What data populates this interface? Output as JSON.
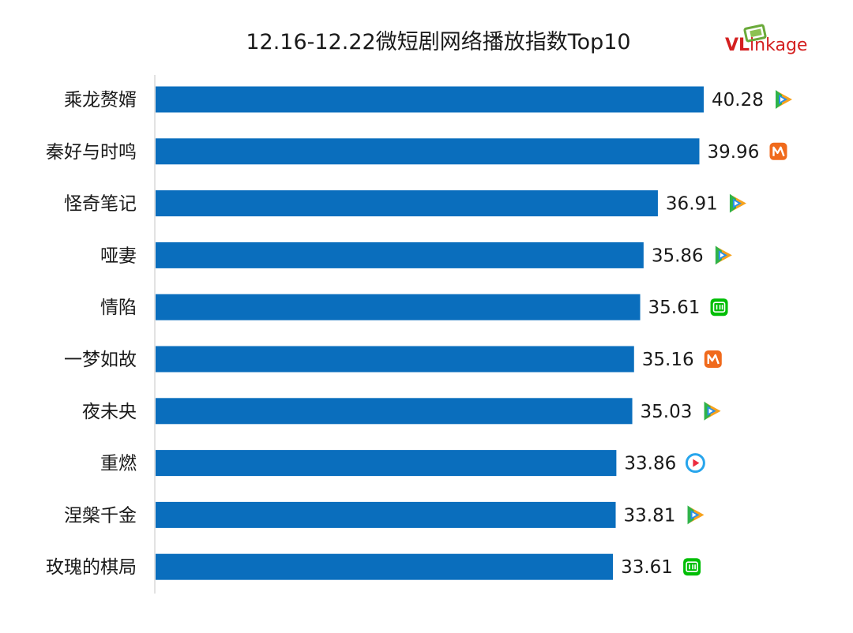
{
  "chart_data": {
    "type": "bar",
    "orientation": "horizontal",
    "title": "12.16-12.22微短剧网络播放指数Top10",
    "categories": [
      "乘龙赘婿",
      "秦好与时鸣",
      "怪奇笔记",
      "哑妻",
      "情陷",
      "一梦如故",
      "夜未央",
      "重燃",
      "涅槃千金",
      "玫瑰的棋局"
    ],
    "values": [
      40.28,
      39.96,
      36.91,
      35.86,
      35.61,
      35.16,
      35.03,
      33.86,
      33.81,
      33.61
    ],
    "value_labels": [
      "40.28",
      "39.96",
      "36.91",
      "35.86",
      "35.61",
      "35.16",
      "35.03",
      "33.86",
      "33.81",
      "33.61"
    ],
    "platform_icons": [
      "tencent-video-icon",
      "mango-tv-icon",
      "tencent-video-icon",
      "tencent-video-icon",
      "iqiyi-icon",
      "mango-tv-icon",
      "tencent-video-icon",
      "youku-icon",
      "tencent-video-icon",
      "iqiyi-icon"
    ],
    "bar_color": "#0a6ebd",
    "grid": false,
    "legend": "none"
  },
  "brand": {
    "logo_text_v": "VL",
    "logo_text_rest": "inkage",
    "v_color": "#d42020",
    "rest_color": "#d42020",
    "frame_color": "#6aaa3a"
  },
  "colors": {
    "tencent_green": "#2fb34a",
    "tencent_orange": "#f6a21d",
    "tencent_blue": "#2a8ee8",
    "mango": "#f06a1c",
    "iqiyi": "#00be06",
    "youku_blue": "#27a5ec",
    "youku_red": "#ec2b3f"
  }
}
